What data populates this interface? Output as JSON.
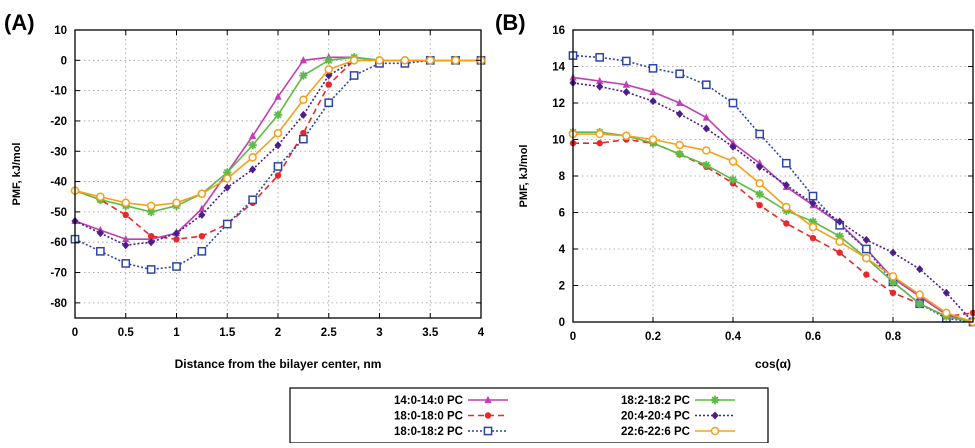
{
  "figure": {
    "legend": [
      {
        "series": "14:0-14:0 PC",
        "color": "#c13fb3",
        "dash": "solid",
        "marker": "triangle"
      },
      {
        "series": "18:0-18:0 PC",
        "color": "#e8282a",
        "dash": "dashed",
        "marker": "circle"
      },
      {
        "series": "18:0-18:2 PC",
        "color": "#2d45a8",
        "dash": "dotted",
        "marker": "open-square"
      },
      {
        "series": "18:2-18:2 PC",
        "color": "#5dbb46",
        "dash": "solid",
        "marker": "star"
      },
      {
        "series": "20:4-20:4 PC",
        "color": "#4b1e8c",
        "dash": "dotted",
        "marker": "diamond"
      },
      {
        "series": "22:6-22:6 PC",
        "color": "#f5a01a",
        "dash": "solid",
        "marker": "open-circle"
      }
    ]
  },
  "chart_data": [
    {
      "type": "line",
      "panel_label": "(A)",
      "xlabel": "Distance from the bilayer center, nm",
      "ylabel": "PMF, kJ/mol",
      "xlim": [
        0,
        4
      ],
      "ylim": [
        -85,
        10
      ],
      "xticks": [
        0,
        0.5,
        1,
        1.5,
        2,
        2.5,
        3,
        3.5,
        4
      ],
      "xtick_labels": [
        "0",
        "0.5",
        "1",
        "1.5",
        "2",
        "2.5",
        "3",
        "3.5",
        "4"
      ],
      "yticks": [
        10,
        0,
        -10,
        -20,
        -30,
        -40,
        -50,
        -60,
        -70,
        -80
      ],
      "ytick_labels": [
        "10",
        "0",
        "-10",
        "-20",
        "-30",
        "-40",
        "-50",
        "-60",
        "-70",
        "-80"
      ],
      "grid": true,
      "series": [
        {
          "name": "14:0-14:0 PC",
          "x": [
            0,
            0.25,
            0.5,
            0.75,
            1.0,
            1.25,
            1.5,
            1.75,
            2.0,
            2.25,
            2.5,
            2.75,
            3.0,
            3.25,
            3.5,
            3.75,
            4.0
          ],
          "y": [
            -53,
            -56,
            -59,
            -59,
            -57,
            -49,
            -37,
            -25,
            -12,
            0,
            1,
            1,
            0,
            0,
            0,
            0,
            0
          ]
        },
        {
          "name": "18:0-18:0 PC",
          "x": [
            0,
            0.25,
            0.5,
            0.75,
            1.0,
            1.25,
            1.5,
            1.75,
            2.0,
            2.25,
            2.5,
            2.75,
            3.0,
            3.25,
            3.5,
            3.75,
            4.0
          ],
          "y": [
            -43,
            -46,
            -51,
            -58,
            -59,
            -58,
            -54,
            -47,
            -38,
            -24,
            -8,
            0,
            0,
            0,
            0,
            0,
            0
          ]
        },
        {
          "name": "18:0-18:2 PC",
          "x": [
            0,
            0.25,
            0.5,
            0.75,
            1.0,
            1.25,
            1.5,
            1.75,
            2.0,
            2.25,
            2.5,
            2.75,
            3.0,
            3.25,
            3.5,
            3.75,
            4.0
          ],
          "y": [
            -59,
            -63,
            -67,
            -69,
            -68,
            -63,
            -54,
            -46,
            -35,
            -26,
            -14,
            -5,
            -1,
            -1,
            0,
            0,
            0
          ]
        },
        {
          "name": "18:2-18:2 PC",
          "x": [
            0,
            0.25,
            0.5,
            0.75,
            1.0,
            1.25,
            1.5,
            1.75,
            2.0,
            2.25,
            2.5,
            2.75,
            3.0,
            3.25,
            3.5,
            3.75,
            4.0
          ],
          "y": [
            -43,
            -46,
            -48,
            -50,
            -48,
            -44,
            -37,
            -28,
            -18,
            -5,
            0,
            1,
            0,
            0,
            0,
            0,
            0
          ]
        },
        {
          "name": "20:4-20:4 PC",
          "x": [
            0,
            0.25,
            0.5,
            0.75,
            1.0,
            1.25,
            1.5,
            1.75,
            2.0,
            2.25,
            2.5,
            2.75,
            3.0,
            3.25,
            3.5,
            3.75,
            4.0
          ],
          "y": [
            -53,
            -57,
            -61,
            -60,
            -57,
            -51,
            -42,
            -36,
            -28,
            -18,
            -5,
            0,
            0,
            0,
            0,
            0,
            0
          ]
        },
        {
          "name": "22:6-22:6 PC",
          "x": [
            0,
            0.25,
            0.5,
            0.75,
            1.0,
            1.25,
            1.5,
            1.75,
            2.0,
            2.25,
            2.5,
            2.75,
            3.0,
            3.25,
            3.5,
            3.75,
            4.0
          ],
          "y": [
            -43,
            -45,
            -47,
            -48,
            -47,
            -44,
            -39,
            -32,
            -24,
            -13,
            -3,
            0,
            0,
            0,
            0,
            0,
            0
          ]
        }
      ]
    },
    {
      "type": "line",
      "panel_label": "(B)",
      "xlabel": "cos(α)",
      "ylabel": "PMF, kJ/mol",
      "xlim": [
        0,
        1
      ],
      "ylim": [
        0,
        16
      ],
      "xticks": [
        0,
        0.2,
        0.4,
        0.6,
        0.8
      ],
      "xtick_labels": [
        "0",
        "0.2",
        "0.4",
        "0.6",
        "0.8"
      ],
      "yticks": [
        0,
        2,
        4,
        6,
        8,
        10,
        12,
        14,
        16
      ],
      "ytick_labels": [
        "0",
        "2",
        "4",
        "6",
        "8",
        "10",
        "12",
        "14",
        "16"
      ],
      "grid": true,
      "series": [
        {
          "name": "14:0-14:0 PC",
          "x": [
            0,
            0.0667,
            0.1333,
            0.2,
            0.2667,
            0.3333,
            0.4,
            0.4667,
            0.5333,
            0.6,
            0.6667,
            0.7333,
            0.8,
            0.8667,
            0.9333,
            1.0
          ],
          "y": [
            13.4,
            13.2,
            13.0,
            12.6,
            12.0,
            11.2,
            9.8,
            8.7,
            7.4,
            6.4,
            5.4,
            4.0,
            2.4,
            1.4,
            0.4,
            0
          ]
        },
        {
          "name": "18:0-18:0 PC",
          "x": [
            0,
            0.0667,
            0.1333,
            0.2,
            0.2667,
            0.3333,
            0.4,
            0.4667,
            0.5333,
            0.6,
            0.6667,
            0.7333,
            0.8,
            0.8667,
            0.9333,
            1.0
          ],
          "y": [
            9.8,
            9.8,
            10.0,
            9.8,
            9.2,
            8.5,
            7.6,
            6.4,
            5.4,
            4.6,
            3.8,
            2.6,
            1.6,
            1.0,
            0.3,
            0.5
          ]
        },
        {
          "name": "18:0-18:2 PC",
          "x": [
            0,
            0.0667,
            0.1333,
            0.2,
            0.2667,
            0.3333,
            0.4,
            0.4667,
            0.5333,
            0.6,
            0.6667,
            0.7333,
            0.8,
            0.8667,
            0.9333,
            1.0
          ],
          "y": [
            14.6,
            14.5,
            14.3,
            13.9,
            13.6,
            13.0,
            12.0,
            10.3,
            8.7,
            6.9,
            5.3,
            4.0,
            2.2,
            1.0,
            0.2,
            0
          ]
        },
        {
          "name": "18:2-18:2 PC",
          "x": [
            0,
            0.0667,
            0.1333,
            0.2,
            0.2667,
            0.3333,
            0.4,
            0.4667,
            0.5333,
            0.6,
            0.6667,
            0.7333,
            0.8,
            0.8667,
            0.9333,
            1.0
          ],
          "y": [
            10.4,
            10.4,
            10.2,
            9.8,
            9.2,
            8.6,
            7.8,
            7.0,
            6.1,
            5.5,
            4.7,
            3.5,
            2.2,
            1.0,
            0.3,
            0
          ]
        },
        {
          "name": "20:4-20:4 PC",
          "x": [
            0,
            0.0667,
            0.1333,
            0.2,
            0.2667,
            0.3333,
            0.4,
            0.4667,
            0.5333,
            0.6,
            0.6667,
            0.7333,
            0.8,
            0.8667,
            0.9333,
            1.0
          ],
          "y": [
            13.1,
            12.9,
            12.6,
            12.1,
            11.4,
            10.6,
            9.6,
            8.5,
            7.5,
            6.5,
            5.5,
            4.5,
            3.8,
            2.9,
            1.6,
            0
          ]
        },
        {
          "name": "22:6-22:6 PC",
          "x": [
            0,
            0.0667,
            0.1333,
            0.2,
            0.2667,
            0.3333,
            0.4,
            0.4667,
            0.5333,
            0.6,
            0.6667,
            0.7333,
            0.8,
            0.8667,
            0.9333,
            1.0
          ],
          "y": [
            10.3,
            10.3,
            10.2,
            10.0,
            9.7,
            9.4,
            8.8,
            7.6,
            6.3,
            5.2,
            4.4,
            3.5,
            2.5,
            1.5,
            0.5,
            0
          ]
        }
      ]
    }
  ]
}
